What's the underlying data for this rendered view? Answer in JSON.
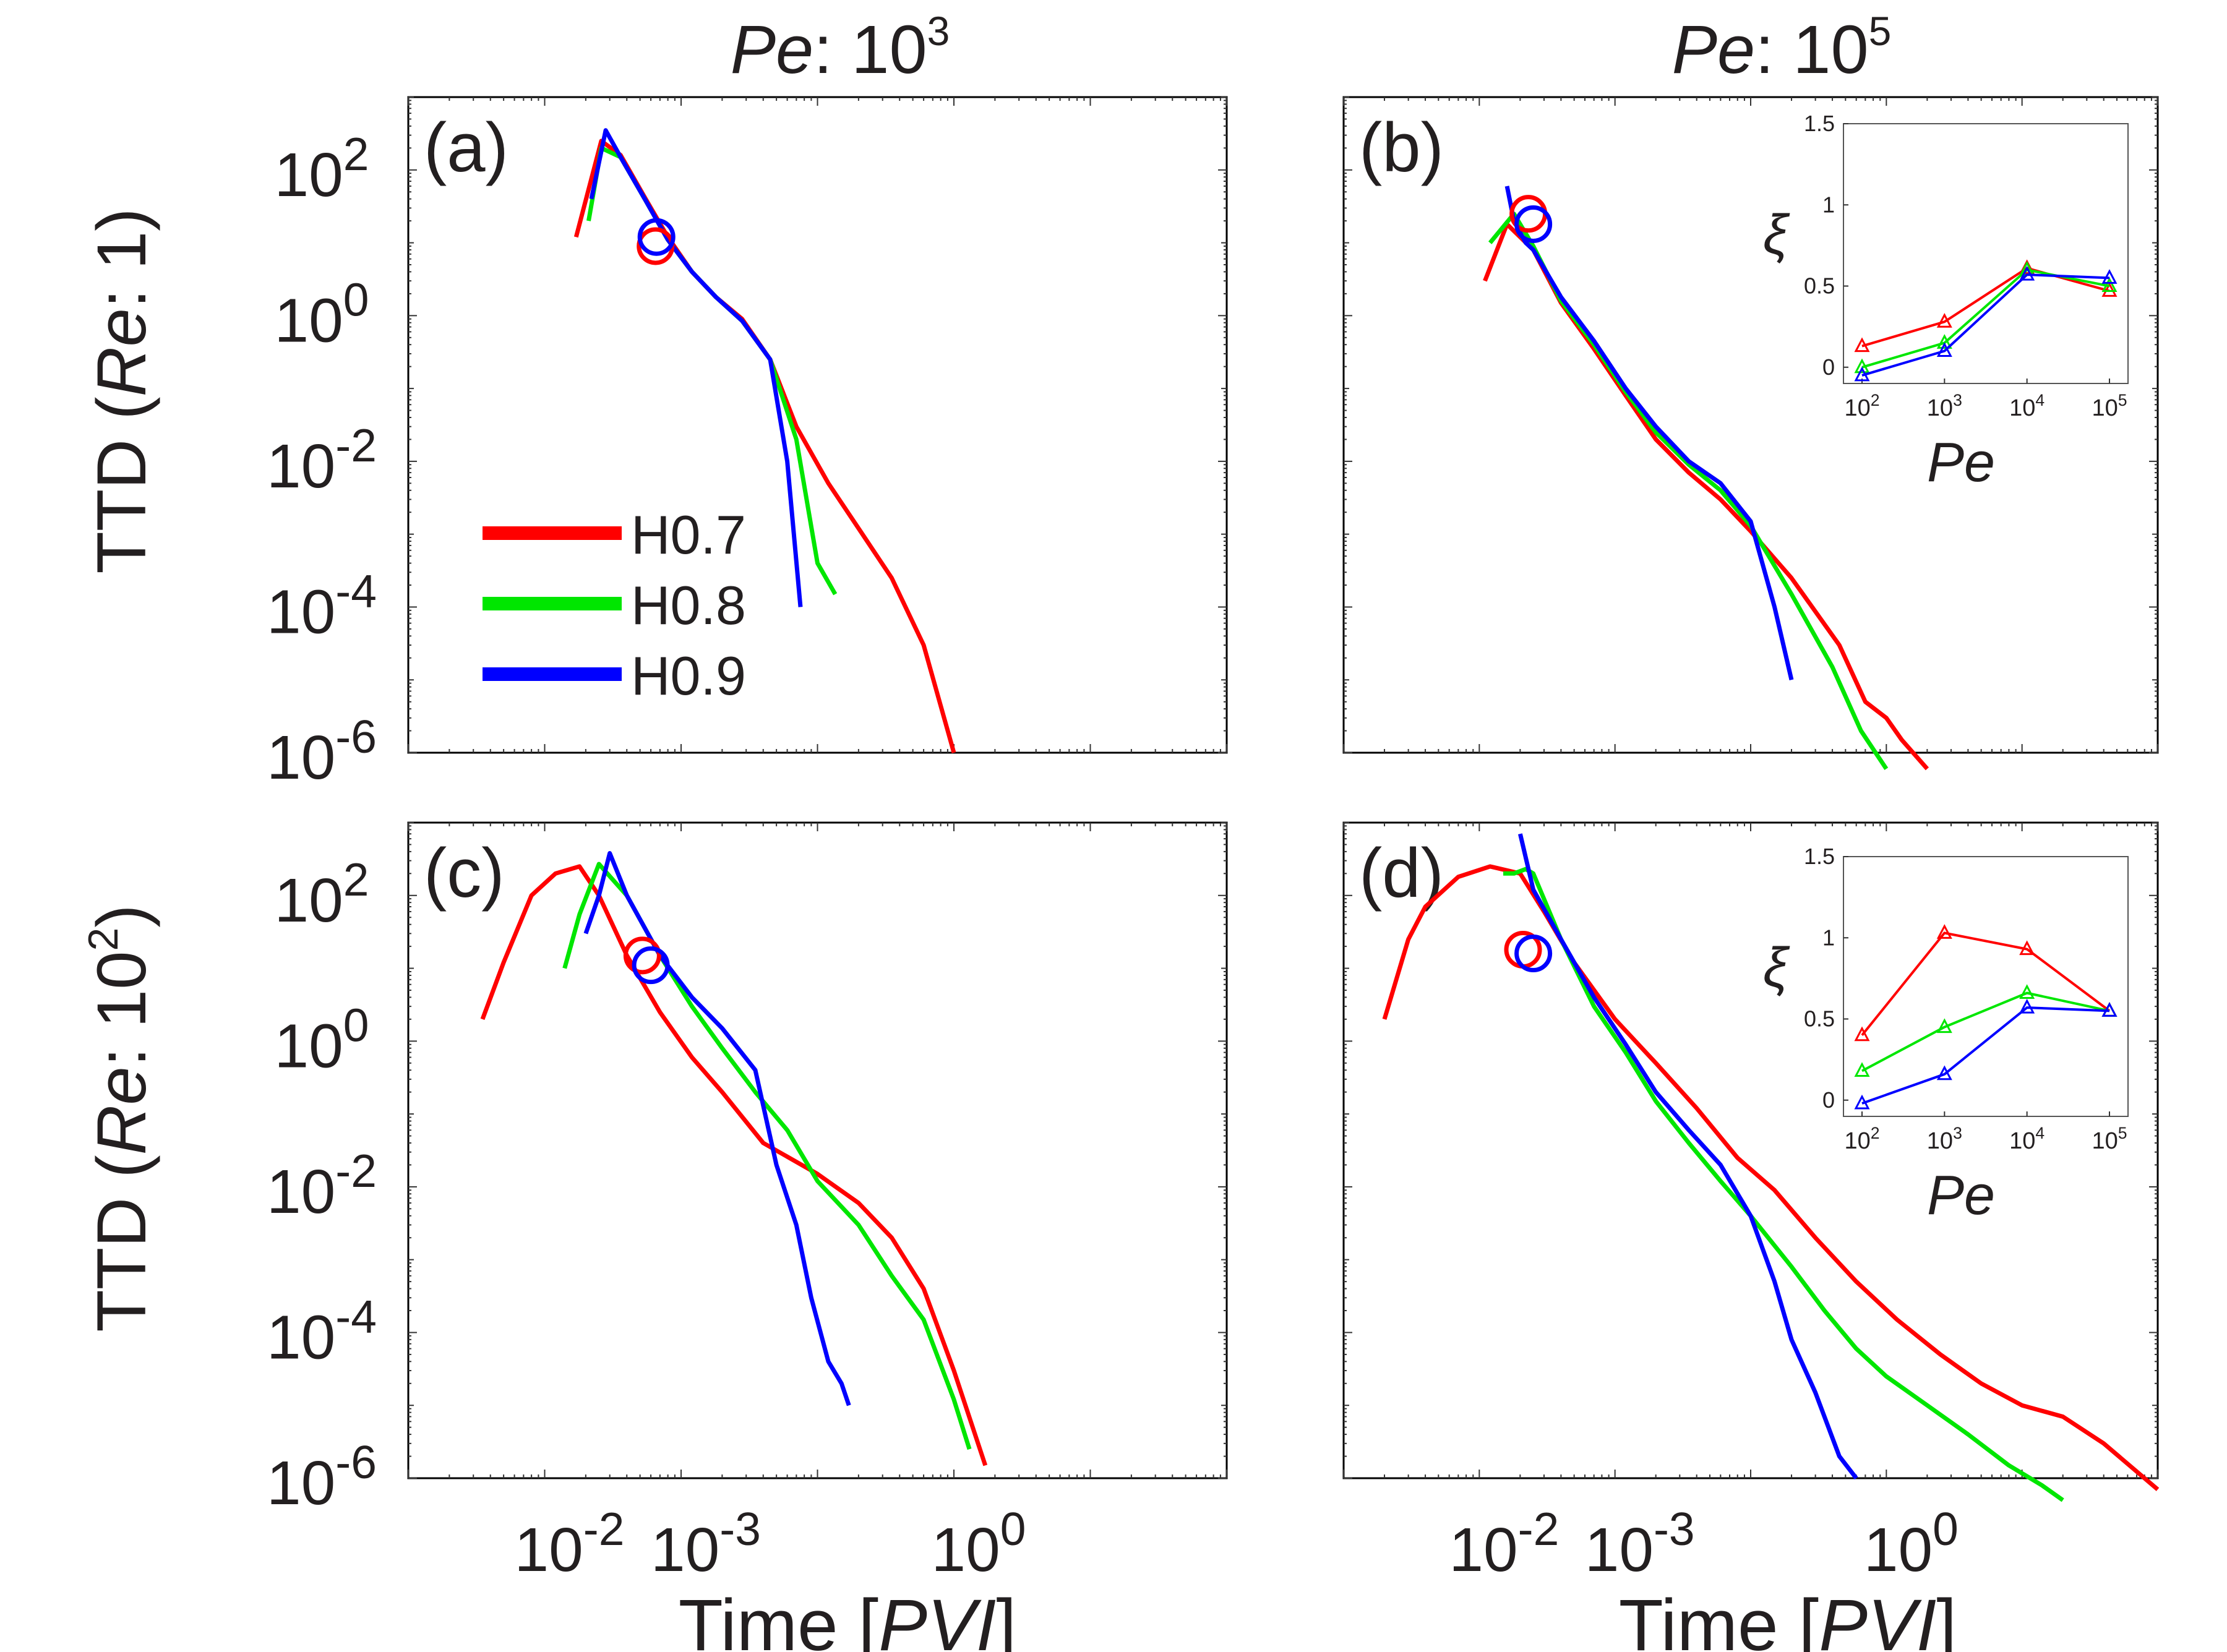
{
  "figure": {
    "column_titles": [
      {
        "italic": "Pe",
        "rest": ": 10",
        "sup": "3"
      },
      {
        "italic": "Pe",
        "rest": ": 10",
        "sup": "5"
      }
    ],
    "row_titles": [
      {
        "pre": "TTD (",
        "italic": "Re",
        "rest": ": 1)",
        "sup": ""
      },
      {
        "pre": "TTD (",
        "italic": "Re",
        "rest": ": 10",
        "sup": "2",
        "close": ")"
      }
    ],
    "xlabel": {
      "pre": "Time [",
      "italic": "PVI",
      "post": "]"
    },
    "colors": {
      "H0.7": "#ff0000",
      "H0.8": "#00e600",
      "H0.9": "#0000ff"
    }
  },
  "chart_data": [
    {
      "type": "line",
      "panel": "(a)",
      "xscale": "log",
      "yscale": "log",
      "xlim": [
        0.0001,
        100
      ],
      "ylim": [
        1e-06,
        1000
      ],
      "xticks": [
        {
          "base": "10",
          "exp": "-2"
        },
        {
          "base": "10",
          "exp": "-3"
        },
        {
          "base": "10",
          "exp": "0"
        }
      ],
      "yticks": [
        {
          "base": "10",
          "exp": "2"
        },
        {
          "base": "10",
          "exp": "0"
        },
        {
          "base": "10",
          "exp": "-2"
        },
        {
          "base": "10",
          "exp": "-4"
        },
        {
          "base": "10",
          "exp": "-6"
        }
      ],
      "legend": {
        "entries": [
          "H0.7",
          "H0.8",
          "H0.9"
        ],
        "position": "lower-left"
      },
      "series": [
        {
          "name": "H0.7",
          "x": [
            0.0017,
            0.0026,
            0.0036,
            0.0055,
            0.008,
            0.012,
            0.018,
            0.028,
            0.045,
            0.07,
            0.12,
            0.2,
            0.35,
            0.6,
            1.0
          ],
          "y": [
            12,
            250,
            160,
            40,
            12,
            4,
            1.8,
            0.9,
            0.25,
            0.03,
            0.005,
            0.0012,
            0.00025,
            3e-05,
            1e-06
          ]
        },
        {
          "name": "H0.8",
          "x": [
            0.0021,
            0.0026,
            0.0036,
            0.0055,
            0.008,
            0.012,
            0.018,
            0.028,
            0.045,
            0.07,
            0.1,
            0.135
          ],
          "y": [
            20,
            200,
            150,
            38,
            11,
            4,
            1.8,
            0.85,
            0.25,
            0.02,
            0.0004,
            0.00015
          ]
        },
        {
          "name": "H0.9",
          "x": [
            0.0022,
            0.0028,
            0.0036,
            0.0055,
            0.008,
            0.012,
            0.018,
            0.028,
            0.045,
            0.06,
            0.075
          ],
          "y": [
            40,
            350,
            150,
            38,
            11,
            4,
            1.8,
            0.85,
            0.25,
            0.01,
            0.0001
          ]
        }
      ],
      "markers": [
        {
          "series": "H0.7",
          "x": 0.0065,
          "y": 9
        },
        {
          "series": "H0.9",
          "x": 0.0066,
          "y": 12
        }
      ]
    },
    {
      "type": "line",
      "panel": "(b)",
      "xscale": "log",
      "yscale": "log",
      "xlim": [
        0.0001,
        100
      ],
      "ylim": [
        1e-06,
        1000
      ],
      "series": [
        {
          "name": "H0.7",
          "x": [
            0.0011,
            0.0016,
            0.0025,
            0.004,
            0.007,
            0.012,
            0.02,
            0.035,
            0.06,
            0.1,
            0.2,
            0.45,
            0.7,
            1.0,
            1.3,
            2.0
          ],
          "y": [
            3,
            18,
            8,
            1.5,
            0.35,
            0.08,
            0.02,
            0.007,
            0.003,
            0.0011,
            0.00025,
            3e-05,
            5e-06,
            3e-06,
            1.5e-06,
            6e-07
          ]
        },
        {
          "name": "H0.8",
          "x": [
            0.0012,
            0.0018,
            0.0025,
            0.004,
            0.007,
            0.012,
            0.02,
            0.035,
            0.06,
            0.1,
            0.2,
            0.4,
            0.65,
            1.0
          ],
          "y": [
            10,
            25,
            9,
            1.6,
            0.4,
            0.09,
            0.025,
            0.009,
            0.004,
            0.0013,
            0.00015,
            1.5e-05,
            2e-06,
            6e-07
          ]
        },
        {
          "name": "H0.9",
          "x": [
            0.0016,
            0.0018,
            0.0022,
            0.0025,
            0.004,
            0.007,
            0.012,
            0.02,
            0.035,
            0.06,
            0.1,
            0.15,
            0.2
          ],
          "y": [
            60,
            20,
            10,
            8,
            1.8,
            0.45,
            0.1,
            0.03,
            0.01,
            0.005,
            0.0015,
            0.0001,
            1e-05
          ]
        }
      ],
      "markers": [
        {
          "series": "H0.7",
          "x": 0.0023,
          "y": 25
        },
        {
          "series": "H0.9",
          "x": 0.0025,
          "y": 18
        }
      ],
      "inset": {
        "ylabel": "ξ",
        "xlabel": "Pe",
        "yticks": [
          "0",
          "0.5",
          "1",
          "1.5"
        ],
        "ylim": [
          -0.1,
          1.5
        ],
        "xticks": [
          {
            "base": "10",
            "exp": "2"
          },
          {
            "base": "10",
            "exp": "3"
          },
          {
            "base": "10",
            "exp": "4"
          },
          {
            "base": "10",
            "exp": "5"
          }
        ],
        "series": [
          {
            "name": "H0.7",
            "x": [
              100,
              1000,
              10000,
              100000
            ],
            "y": [
              0.13,
              0.28,
              0.61,
              0.47
            ]
          },
          {
            "name": "H0.8",
            "x": [
              100,
              1000,
              10000,
              100000
            ],
            "y": [
              0.0,
              0.15,
              0.6,
              0.5
            ]
          },
          {
            "name": "H0.9",
            "x": [
              100,
              1000,
              10000,
              100000
            ],
            "y": [
              -0.05,
              0.1,
              0.57,
              0.55
            ]
          }
        ]
      }
    },
    {
      "type": "line",
      "panel": "(c)",
      "xscale": "log",
      "yscale": "log",
      "xlim": [
        0.0001,
        100
      ],
      "ylim": [
        1e-06,
        1000
      ],
      "series": [
        {
          "name": "H0.7",
          "x": [
            0.00035,
            0.0005,
            0.0008,
            0.0012,
            0.0018,
            0.0025,
            0.004,
            0.007,
            0.012,
            0.02,
            0.04,
            0.1,
            0.2,
            0.35,
            0.6,
            1.0,
            1.7
          ],
          "y": [
            2,
            12,
            100,
            200,
            250,
            100,
            15,
            2.5,
            0.6,
            0.2,
            0.04,
            0.015,
            0.006,
            0.002,
            0.0004,
            3e-05,
            1.5e-06
          ]
        },
        {
          "name": "H0.8",
          "x": [
            0.0014,
            0.0018,
            0.0025,
            0.004,
            0.007,
            0.012,
            0.02,
            0.035,
            0.06,
            0.1,
            0.2,
            0.35,
            0.6,
            1.0,
            1.3
          ],
          "y": [
            10,
            55,
            270,
            100,
            15,
            3,
            0.8,
            0.2,
            0.06,
            0.012,
            0.003,
            0.0006,
            0.00015,
            1.2e-05,
            2.5e-06
          ]
        },
        {
          "name": "H0.9",
          "x": [
            0.002,
            0.0025,
            0.003,
            0.004,
            0.007,
            0.012,
            0.02,
            0.035,
            0.05,
            0.07,
            0.09,
            0.12,
            0.15,
            0.17
          ],
          "y": [
            30,
            100,
            380,
            100,
            15,
            4,
            1.5,
            0.4,
            0.02,
            0.003,
            0.0003,
            4e-05,
            2e-05,
            1e-05
          ]
        }
      ],
      "markers": [
        {
          "series": "H0.7",
          "x": 0.0052,
          "y": 15
        },
        {
          "series": "H0.9",
          "x": 0.006,
          "y": 11
        }
      ]
    },
    {
      "type": "line",
      "panel": "(d)",
      "xscale": "log",
      "yscale": "log",
      "xlim": [
        0.0001,
        100
      ],
      "ylim": [
        1e-06,
        1000
      ],
      "series": [
        {
          "name": "H0.7",
          "x": [
            0.0002,
            0.0003,
            0.0004,
            0.0007,
            0.0012,
            0.002,
            0.003,
            0.005,
            0.01,
            0.02,
            0.04,
            0.08,
            0.15,
            0.3,
            0.6,
            1.2,
            2.5,
            5.0,
            10,
            20,
            40,
            100
          ],
          "y": [
            2,
            25,
            70,
            180,
            250,
            200,
            60,
            12,
            2,
            0.5,
            0.12,
            0.025,
            0.009,
            0.002,
            0.0005,
            0.00015,
            5e-05,
            2e-05,
            1e-05,
            7e-06,
            3e-06,
            7e-07
          ]
        },
        {
          "name": "H0.8",
          "x": [
            0.0015,
            0.0018,
            0.0022,
            0.0025,
            0.004,
            0.007,
            0.012,
            0.02,
            0.035,
            0.06,
            0.1,
            0.2,
            0.35,
            0.6,
            1.0,
            2.0,
            4.0,
            8.0,
            14,
            20
          ],
          "y": [
            200,
            200,
            230,
            200,
            25,
            3,
            0.7,
            0.15,
            0.04,
            0.012,
            0.004,
            0.0008,
            0.0002,
            6e-05,
            2.5e-05,
            1e-05,
            4e-06,
            1.5e-06,
            8e-07,
            5e-07
          ]
        },
        {
          "name": "H0.9",
          "x": [
            0.002,
            0.0025,
            0.004,
            0.007,
            0.012,
            0.02,
            0.035,
            0.06,
            0.1,
            0.15,
            0.2,
            0.3,
            0.45,
            0.6
          ],
          "y": [
            700,
            120,
            25,
            4,
            0.9,
            0.2,
            0.06,
            0.02,
            0.004,
            0.0005,
            8e-05,
            1.5e-05,
            2e-06,
            1e-06
          ]
        }
      ],
      "markers": [
        {
          "series": "H0.7",
          "x": 0.0021,
          "y": 18
        },
        {
          "series": "H0.9",
          "x": 0.0025,
          "y": 16
        }
      ],
      "inset": {
        "ylabel": "ξ",
        "xlabel": "Pe",
        "yticks": [
          "0",
          "0.5",
          "1",
          "1.5"
        ],
        "ylim": [
          -0.1,
          1.5
        ],
        "xticks": [
          {
            "base": "10",
            "exp": "2"
          },
          {
            "base": "10",
            "exp": "3"
          },
          {
            "base": "10",
            "exp": "4"
          },
          {
            "base": "10",
            "exp": "5"
          }
        ],
        "series": [
          {
            "name": "H0.7",
            "x": [
              100,
              1000,
              10000,
              100000
            ],
            "y": [
              0.4,
              1.03,
              0.93,
              0.55
            ]
          },
          {
            "name": "H0.8",
            "x": [
              100,
              1000,
              10000,
              100000
            ],
            "y": [
              0.18,
              0.45,
              0.66,
              0.55
            ]
          },
          {
            "name": "H0.9",
            "x": [
              100,
              1000,
              10000,
              100000
            ],
            "y": [
              -0.02,
              0.16,
              0.57,
              0.55
            ]
          }
        ]
      }
    }
  ]
}
